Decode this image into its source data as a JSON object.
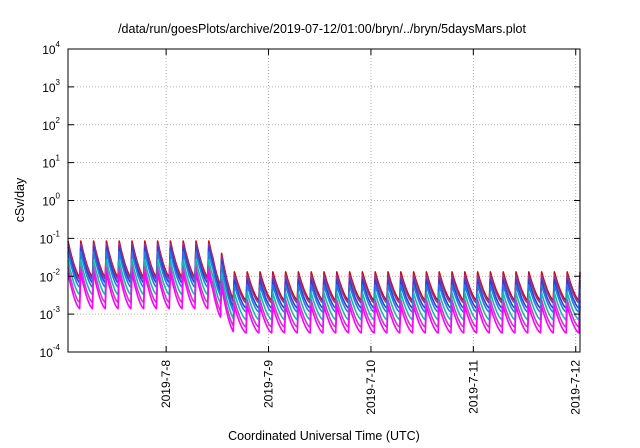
{
  "chart_data": {
    "type": "line",
    "title": "/data/run/goesPlots/archive/2019-07-12/01:00/bryn/../bryn/5daysMars.plot",
    "xlabel": "Coordinated Universal Time (UTC)",
    "ylabel": "cSv/day",
    "yscale": "log",
    "ylim": [
      0.0001,
      10000
    ],
    "xlim": [
      "2019-07-07 01:00",
      "2019-07-12 01:00"
    ],
    "grid": true,
    "legend": "none",
    "y_ticks": [
      {
        "base": "10",
        "exp": "-4"
      },
      {
        "base": "10",
        "exp": "-3"
      },
      {
        "base": "10",
        "exp": "-2"
      },
      {
        "base": "10",
        "exp": "-1"
      },
      {
        "base": "10",
        "exp": "0"
      },
      {
        "base": "10",
        "exp": "1"
      },
      {
        "base": "10",
        "exp": "2"
      },
      {
        "base": "10",
        "exp": "3"
      },
      {
        "base": "10",
        "exp": "4"
      }
    ],
    "x_ticks": [
      "2019-7-8",
      "2019-7-9",
      "2019-7-10",
      "2019-7-11",
      "2019-7-12"
    ],
    "sawtooth_period_hours": 3,
    "regime_change": "2019-07-08 13:30",
    "series": [
      {
        "color": "#e0000e",
        "before_peak": 0.085,
        "before_trough": 0.009,
        "after_peak": 0.013,
        "after_trough": 0.0022
      },
      {
        "color": "#7a3fa0",
        "before_peak": 0.075,
        "before_trough": 0.008,
        "after_peak": 0.011,
        "after_trough": 0.0019
      },
      {
        "color": "#3a3ad8",
        "before_peak": 0.065,
        "before_trough": 0.0065,
        "after_peak": 0.0085,
        "after_trough": 0.0014
      },
      {
        "color": "#1e7fe0",
        "before_peak": 0.05,
        "before_trough": 0.005,
        "after_peak": 0.0065,
        "after_trough": 0.0011
      },
      {
        "color": "#18b8b0",
        "before_peak": 0.032,
        "before_trough": 0.0032,
        "after_peak": 0.0042,
        "after_trough": 0.0007
      },
      {
        "color": "#c040c0",
        "before_peak": 0.022,
        "before_trough": 0.002,
        "after_peak": 0.0028,
        "after_trough": 0.00045
      },
      {
        "color": "#ff00ff",
        "before_peak": 0.016,
        "before_trough": 0.0014,
        "after_peak": 0.002,
        "after_trough": 0.00032
      }
    ]
  }
}
